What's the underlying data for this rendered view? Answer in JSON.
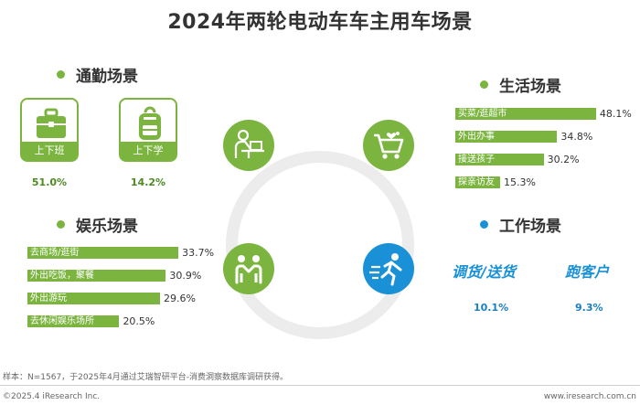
{
  "title": "2024年两轮电动车车主用车场景",
  "colors": {
    "green": "#7bb540",
    "blue": "#1a91d6",
    "ring": "#ececec"
  },
  "commute": {
    "title": "通勤场景",
    "items": [
      {
        "label": "上下班",
        "pct": "51.0%",
        "icon": "briefcase-icon"
      },
      {
        "label": "上下学",
        "pct": "14.2%",
        "icon": "backpack-icon"
      }
    ]
  },
  "life": {
    "title": "生活场景"
  },
  "entertain": {
    "title": "娱乐场景"
  },
  "work": {
    "title": "工作场景",
    "items": [
      {
        "label": "调货/送货",
        "pct": "10.1%"
      },
      {
        "label": "跑客户",
        "pct": "9.3%"
      }
    ]
  },
  "center_icons": [
    "laptop-user-icon",
    "shopping-cart-icon",
    "handshake-icon",
    "running-man-icon"
  ],
  "chart_data": [
    {
      "type": "bar",
      "orientation": "horizontal",
      "title": "生活场景",
      "categories": [
        "买菜/逛超市",
        "外出办事",
        "接送孩子",
        "探亲访友"
      ],
      "values": [
        48.1,
        34.8,
        30.2,
        15.3
      ],
      "value_labels": [
        "48.1%",
        "34.8%",
        "30.2%",
        "15.3%"
      ],
      "unit": "%"
    },
    {
      "type": "bar",
      "orientation": "horizontal",
      "title": "娱乐场景",
      "categories": [
        "去商场/逛街",
        "外出吃饭，聚餐",
        "外出游玩",
        "去休闲娱乐场所"
      ],
      "values": [
        33.7,
        30.9,
        29.6,
        20.5
      ],
      "value_labels": [
        "33.7%",
        "30.9%",
        "29.6%",
        "20.5%"
      ],
      "unit": "%"
    }
  ],
  "footer": {
    "note": "样本：N=1567，于2025年4月通过艾瑞智研平台-消费洞察数据库调研获得。",
    "copyright": "©2025.4 iResearch Inc.",
    "site": "www.iresearch.com.cn"
  }
}
